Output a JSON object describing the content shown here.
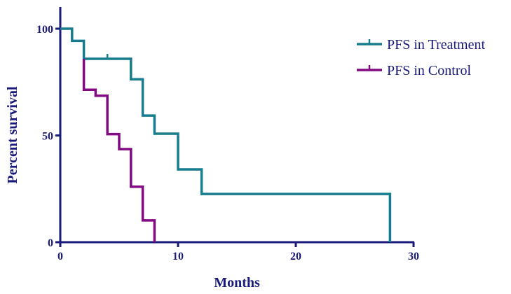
{
  "chart_data": {
    "type": "line",
    "subtype": "kaplan-meier-step",
    "title": "",
    "xlabel": "Months",
    "ylabel": "Percent survival",
    "xlim": [
      0,
      30
    ],
    "ylim": [
      0,
      100
    ],
    "xticks": [
      0,
      10,
      20,
      30
    ],
    "yticks": [
      0,
      50,
      100
    ],
    "grid": false,
    "legend_position": "top-right",
    "series": [
      {
        "name": "PFS in Treatment",
        "color": "#177c8e",
        "steps": [
          [
            0,
            100
          ],
          [
            1,
            94.3
          ],
          [
            2,
            85.9
          ],
          [
            6,
            76.3
          ],
          [
            7,
            59.3
          ],
          [
            8,
            50.8
          ],
          [
            10,
            34.1
          ],
          [
            12,
            22.6
          ],
          [
            28,
            0
          ]
        ],
        "censored": [
          [
            4,
            85.9
          ]
        ]
      },
      {
        "name": "PFS in Control",
        "color": "#820a82",
        "steps": [
          [
            2,
            85.9
          ],
          [
            2,
            71.4
          ],
          [
            3,
            68.6
          ],
          [
            4,
            50.6
          ],
          [
            5,
            43.6
          ],
          [
            6,
            26
          ],
          [
            7,
            10.2
          ],
          [
            8,
            0
          ]
        ],
        "censored": []
      }
    ],
    "axis_color": "#1a1a7a"
  }
}
